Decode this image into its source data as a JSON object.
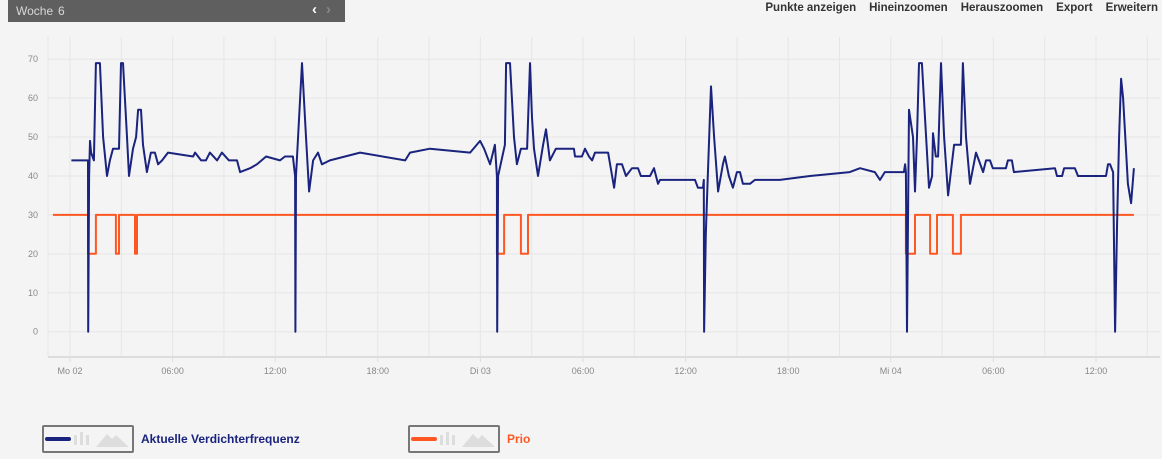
{
  "header": {
    "week_label": "Woche",
    "week_number": "6",
    "prev_icon": "chevron-left-icon",
    "next_icon": "chevron-right-icon"
  },
  "menu": {
    "items": [
      "Punkte anzeigen",
      "Hineinzoomen",
      "Herauszoomen",
      "Export",
      "Erweitern"
    ]
  },
  "legend": [
    {
      "label": "Aktuelle Verdichterfrequenz",
      "color": "#1a237e"
    },
    {
      "label": "Prio",
      "color": "#ff5722"
    }
  ],
  "chart_data": {
    "type": "line",
    "ylim": [
      -6.5,
      75.7
    ],
    "y_ticks": [
      "0",
      "10",
      "20",
      "30",
      "40",
      "50",
      "60",
      "70"
    ],
    "x_ticks": [
      "Mo 02",
      "06:00",
      "12:00",
      "18:00",
      "Di 03",
      "06:00",
      "12:00",
      "18:00",
      "Mi 04",
      "06:00",
      "12:00"
    ],
    "grid": true,
    "legend_position": "bottom",
    "series": [
      {
        "name": "Aktuelle Verdichterfrequenz",
        "color": "#1a237e",
        "step": false,
        "points": [
          [
            "Mo 02 00:05",
            44
          ],
          [
            "Mo 02 01:03",
            44
          ],
          [
            "Mo 02 01:04",
            0
          ],
          [
            "Mo 02 01:07",
            40
          ],
          [
            "Mo 02 01:10",
            49
          ],
          [
            "Mo 02 01:14",
            46
          ],
          [
            "Mo 02 01:24",
            44
          ],
          [
            "Mo 02 01:31",
            69
          ],
          [
            "Mo 02 01:45",
            69
          ],
          [
            "Mo 02 01:56",
            50
          ],
          [
            "Mo 02 02:10",
            40
          ],
          [
            "Mo 02 02:20",
            44
          ],
          [
            "Mo 02 02:31",
            47
          ],
          [
            "Mo 02 02:52",
            47
          ],
          [
            "Mo 02 02:59",
            69
          ],
          [
            "Mo 02 03:06",
            69
          ],
          [
            "Mo 02 03:20",
            50
          ],
          [
            "Mo 02 03:27",
            40
          ],
          [
            "Mo 02 03:41",
            47
          ],
          [
            "Mo 02 03:52",
            50
          ],
          [
            "Mo 02 03:59",
            57
          ],
          [
            "Mo 02 04:09",
            57
          ],
          [
            "Mo 02 04:16",
            48
          ],
          [
            "Mo 02 04:30",
            41
          ],
          [
            "Mo 02 04:44",
            46
          ],
          [
            "Mo 02 04:58",
            46
          ],
          [
            "Mo 02 05:09",
            43
          ],
          [
            "Mo 02 05:23",
            44
          ],
          [
            "Mo 02 05:44",
            46
          ],
          [
            "Mo 02 07:12",
            45
          ],
          [
            "Mo 02 07:19",
            46
          ],
          [
            "Mo 02 07:40",
            44
          ],
          [
            "Mo 02 07:57",
            44
          ],
          [
            "Mo 02 08:11",
            46
          ],
          [
            "Mo 02 08:36",
            44
          ],
          [
            "Mo 02 08:53",
            46
          ],
          [
            "Mo 02 09:18",
            44
          ],
          [
            "Mo 02 09:46",
            44
          ],
          [
            "Mo 02 09:57",
            41
          ],
          [
            "Mo 02 10:32",
            42
          ],
          [
            "Mo 02 10:56",
            43
          ],
          [
            "Mo 02 11:28",
            45
          ],
          [
            "Mo 02 12:17",
            44
          ],
          [
            "Mo 02 12:34",
            45
          ],
          [
            "Mo 02 13:02",
            45
          ],
          [
            "Mo 02 13:10",
            40
          ],
          [
            "Mo 02 13:11",
            0
          ],
          [
            "Mo 02 13:13",
            40
          ],
          [
            "Mo 02 13:34",
            69
          ],
          [
            "Mo 02 13:48",
            50
          ],
          [
            "Mo 02 13:59",
            36
          ],
          [
            "Mo 02 14:13",
            44
          ],
          [
            "Mo 02 14:30",
            46
          ],
          [
            "Mo 02 14:44",
            43
          ],
          [
            "Mo 02 15:12",
            44
          ],
          [
            "Mo 02 16:05",
            45
          ],
          [
            "Mo 02 16:58",
            46
          ],
          [
            "Mo 02 19:36",
            44
          ],
          [
            "Mo 02 19:53",
            46
          ],
          [
            "Mo 02 21:03",
            47
          ],
          [
            "Mo 02 23:24",
            46
          ],
          [
            "Mo 02 23:59",
            49
          ],
          [
            "Di 03 00:13",
            47
          ],
          [
            "Di 03 00:34",
            43
          ],
          [
            "Di 03 00:51",
            48
          ],
          [
            "Di 03 00:58",
            40
          ],
          [
            "Di 03 00:59",
            0
          ],
          [
            "Di 03 01:02",
            40
          ],
          [
            "Di 03 01:26",
            48
          ],
          [
            "Di 03 01:30",
            69
          ],
          [
            "Di 03 01:44",
            69
          ],
          [
            "Di 03 01:58",
            50
          ],
          [
            "Di 03 02:08",
            43
          ],
          [
            "Di 03 02:22",
            47
          ],
          [
            "Di 03 02:44",
            47
          ],
          [
            "Di 03 02:54",
            69
          ],
          [
            "Di 03 03:01",
            55
          ],
          [
            "Di 03 03:08",
            47
          ],
          [
            "Di 03 03:22",
            40
          ],
          [
            "Di 03 03:40",
            48
          ],
          [
            "Di 03 03:50",
            52
          ],
          [
            "Di 03 04:04",
            44
          ],
          [
            "Di 03 04:25",
            47
          ],
          [
            "Di 03 05:28",
            47
          ],
          [
            "Di 03 05:32",
            45
          ],
          [
            "Di 03 05:56",
            45
          ],
          [
            "Di 03 06:07",
            47
          ],
          [
            "Di 03 06:21",
            45
          ],
          [
            "Di 03 06:32",
            44
          ],
          [
            "Di 03 06:42",
            46
          ],
          [
            "Di 03 07:28",
            46
          ],
          [
            "Di 03 07:42",
            40
          ],
          [
            "Di 03 07:49",
            37
          ],
          [
            "Di 03 07:59",
            43
          ],
          [
            "Di 03 08:17",
            43
          ],
          [
            "Di 03 08:31",
            40
          ],
          [
            "Di 03 08:52",
            42
          ],
          [
            "Di 03 09:13",
            42
          ],
          [
            "Di 03 09:23",
            40
          ],
          [
            "Di 03 09:55",
            40
          ],
          [
            "Di 03 10:09",
            42
          ],
          [
            "Di 03 10:23",
            38
          ],
          [
            "Di 03 10:30",
            39
          ],
          [
            "Di 03 12:33",
            39
          ],
          [
            "Di 03 12:43",
            37
          ],
          [
            "Di 03 13:01",
            37
          ],
          [
            "Di 03 13:04",
            39
          ],
          [
            "Di 03 13:05",
            0
          ],
          [
            "Di 03 13:11",
            25
          ],
          [
            "Di 03 13:18",
            40
          ],
          [
            "Di 03 13:29",
            63
          ],
          [
            "Di 03 13:40",
            50
          ],
          [
            "Di 03 13:54",
            36
          ],
          [
            "Di 03 14:11",
            43
          ],
          [
            "Di 03 14:18",
            45
          ],
          [
            "Di 03 14:32",
            40
          ],
          [
            "Di 03 14:46",
            37
          ],
          [
            "Di 03 15:00",
            41
          ],
          [
            "Di 03 15:11",
            41
          ],
          [
            "Di 03 15:21",
            38
          ],
          [
            "Di 03 15:46",
            38
          ],
          [
            "Di 03 16:03",
            39
          ],
          [
            "Di 03 17:31",
            39
          ],
          [
            "Di 03 19:16",
            40
          ],
          [
            "Di 03 21:36",
            41
          ],
          [
            "Di 03 22:12",
            42
          ],
          [
            "Di 03 23:04",
            41
          ],
          [
            "Di 03 23:22",
            39
          ],
          [
            "Di 03 23:39",
            41
          ],
          [
            "Mi 04 00:15",
            41
          ],
          [
            "Mi 04 00:46",
            41
          ],
          [
            "Mi 04 00:50",
            43
          ],
          [
            "Mi 04 00:53",
            41
          ],
          [
            "Mi 04 00:57",
            0
          ],
          [
            "Mi 04 01:04",
            57
          ],
          [
            "Mi 04 01:18",
            50
          ],
          [
            "Mi 04 01:25",
            36
          ],
          [
            "Mi 04 01:32",
            50
          ],
          [
            "Mi 04 01:39",
            69
          ],
          [
            "Mi 04 01:49",
            69
          ],
          [
            "Mi 04 02:04",
            50
          ],
          [
            "Mi 04 02:14",
            37
          ],
          [
            "Mi 04 02:25",
            40
          ],
          [
            "Mi 04 02:28",
            51
          ],
          [
            "Mi 04 02:38",
            45
          ],
          [
            "Mi 04 02:46",
            45
          ],
          [
            "Mi 04 02:56",
            69
          ],
          [
            "Mi 04 03:07",
            50
          ],
          [
            "Mi 04 03:21",
            35
          ],
          [
            "Mi 04 03:42",
            48
          ],
          [
            "Mi 04 04:06",
            48
          ],
          [
            "Mi 04 04:13",
            69
          ],
          [
            "Mi 04 04:24",
            50
          ],
          [
            "Mi 04 04:38",
            38
          ],
          [
            "Mi 04 04:59",
            46
          ],
          [
            "Mi 04 05:09",
            44
          ],
          [
            "Mi 04 05:24",
            41
          ],
          [
            "Mi 04 05:34",
            44
          ],
          [
            "Mi 04 05:48",
            44
          ],
          [
            "Mi 04 05:58",
            42
          ],
          [
            "Mi 04 06:44",
            42
          ],
          [
            "Mi 04 06:51",
            44
          ],
          [
            "Mi 04 07:05",
            44
          ],
          [
            "Mi 04 07:12",
            41
          ],
          [
            "Mi 04 09:36",
            42
          ],
          [
            "Mi 04 09:43",
            40
          ],
          [
            "Mi 04 10:01",
            40
          ],
          [
            "Mi 04 10:08",
            42
          ],
          [
            "Mi 04 10:46",
            42
          ],
          [
            "Mi 04 10:57",
            40
          ],
          [
            "Mi 04 12:35",
            40
          ],
          [
            "Mi 04 12:42",
            43
          ],
          [
            "Mi 04 12:49",
            43
          ],
          [
            "Mi 04 13:00",
            41
          ],
          [
            "Mi 04 13:07",
            0
          ],
          [
            "Mi 04 13:14",
            28
          ],
          [
            "Mi 04 13:21",
            50
          ],
          [
            "Mi 04 13:28",
            65
          ],
          [
            "Mi 04 13:35",
            60
          ],
          [
            "Mi 04 13:52",
            38
          ],
          [
            "Mi 04 14:03",
            33
          ],
          [
            "Mi 04 14:13",
            42
          ]
        ]
      },
      {
        "name": "Prio",
        "color": "#ff5722",
        "step": true,
        "points": [
          [
            "So 01 23:00",
            30
          ],
          [
            "Mo 02 01:03",
            20
          ],
          [
            "Mo 02 01:31",
            30
          ],
          [
            "Mo 02 02:41",
            20
          ],
          [
            "Mo 02 02:52",
            30
          ],
          [
            "Mo 02 03:48",
            20
          ],
          [
            "Mo 02 03:55",
            30
          ],
          [
            "Di 03 00:58",
            20
          ],
          [
            "Di 03 01:23",
            30
          ],
          [
            "Di 03 02:22",
            20
          ],
          [
            "Di 03 02:47",
            30
          ],
          [
            "Mi 04 00:53",
            20
          ],
          [
            "Mi 04 01:25",
            30
          ],
          [
            "Mi 04 02:18",
            20
          ],
          [
            "Mi 04 02:42",
            30
          ],
          [
            "Mi 04 03:38",
            20
          ],
          [
            "Mi 04 04:06",
            30
          ],
          [
            "Mi 04 14:13",
            30
          ]
        ]
      }
    ]
  }
}
